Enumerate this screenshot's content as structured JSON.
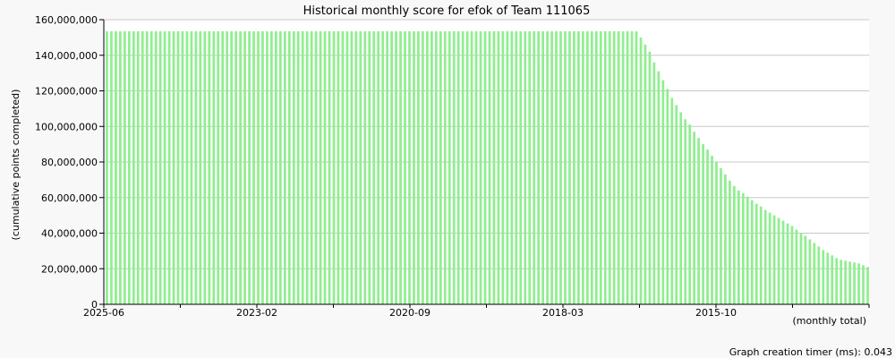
{
  "chart_data": {
    "type": "bar",
    "title": "Historical monthly score for efok of Team 111065",
    "ylabel": "(cumulative points completed)",
    "xlabel": "(monthly total)",
    "ylim": [
      0,
      160000000
    ],
    "yticks": [
      0,
      20000000,
      40000000,
      60000000,
      80000000,
      100000000,
      120000000,
      140000000,
      160000000
    ],
    "ytick_labels": [
      "0",
      "20,000,000",
      "40,000,000",
      "60,000,000",
      "80,000,000",
      "100,000,000",
      "120,000,000",
      "140,000,000",
      "160,000,000"
    ],
    "x_labels": [
      "2025-06",
      "2023-02",
      "2020-09",
      "2018-03",
      "2015-10"
    ],
    "x_order": "newest-to-oldest (2025-06 on the left, earliest month on the right)",
    "bar_color": "#90ee90",
    "grid": true,
    "values": [
      153500000,
      153500000,
      153500000,
      153500000,
      153500000,
      153500000,
      153500000,
      153500000,
      153500000,
      153500000,
      153500000,
      153500000,
      153500000,
      153500000,
      153500000,
      153500000,
      153500000,
      153500000,
      153500000,
      153500000,
      153500000,
      153500000,
      153500000,
      153500000,
      153500000,
      153500000,
      153500000,
      153500000,
      153500000,
      153500000,
      153500000,
      153500000,
      153500000,
      153500000,
      153500000,
      153500000,
      153500000,
      153500000,
      153500000,
      153500000,
      153500000,
      153500000,
      153500000,
      153500000,
      153500000,
      153500000,
      153500000,
      153500000,
      153500000,
      153500000,
      153500000,
      153500000,
      153500000,
      153500000,
      153500000,
      153500000,
      153500000,
      153500000,
      153500000,
      153500000,
      153500000,
      153500000,
      153500000,
      153500000,
      153500000,
      153500000,
      153500000,
      153500000,
      153500000,
      153500000,
      153500000,
      153500000,
      153500000,
      153500000,
      153500000,
      153500000,
      153500000,
      153500000,
      153500000,
      153500000,
      153500000,
      153500000,
      153500000,
      153500000,
      153500000,
      153500000,
      153500000,
      153500000,
      153500000,
      153500000,
      153500000,
      153500000,
      153500000,
      153500000,
      153500000,
      153500000,
      153500000,
      153500000,
      153500000,
      153500000,
      153500000,
      153500000,
      153500000,
      153500000,
      153500000,
      153500000,
      153500000,
      153500000,
      153500000,
      153500000,
      153500000,
      153500000,
      153500000,
      153500000,
      153500000,
      153500000,
      153500000,
      153500000,
      153500000,
      153500000,
      150000000,
      146000000,
      142000000,
      136000000,
      131000000,
      126000000,
      121000000,
      116000000,
      112000000,
      108000000,
      104000000,
      101000000,
      97000000,
      93500000,
      90000000,
      87000000,
      83500000,
      80000000,
      76500000,
      73000000,
      69500000,
      66500000,
      64000000,
      62500000,
      60500000,
      58500000,
      56500000,
      55000000,
      53000000,
      51500000,
      50000000,
      48500000,
      47000000,
      45500000,
      44000000,
      42000000,
      40000000,
      38500000,
      36500000,
      34500000,
      32500000,
      30500000,
      29000000,
      27500000,
      26000000,
      25000000,
      24500000,
      24000000,
      23500000,
      23000000,
      22000000,
      21000000
    ]
  },
  "footer": {
    "timer_text": "Graph creation timer (ms): 0.043"
  }
}
